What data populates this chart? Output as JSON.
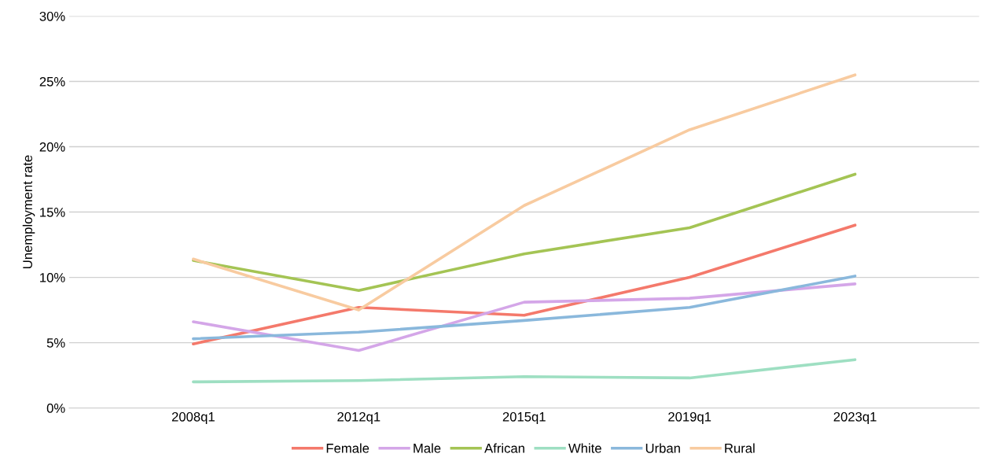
{
  "chart_data": {
    "type": "line",
    "ylabel": "Unemployment rate",
    "categories": [
      "2008q1",
      "2012q1",
      "2015q1",
      "2019q1",
      "2023q1"
    ],
    "series": [
      {
        "name": "Female",
        "color": "#f4796b",
        "values": [
          4.9,
          7.7,
          7.1,
          10.0,
          14.0
        ]
      },
      {
        "name": "Male",
        "color": "#d4a6e8",
        "values": [
          6.6,
          4.4,
          8.1,
          8.4,
          9.5
        ]
      },
      {
        "name": "African",
        "color": "#a4c454",
        "values": [
          11.3,
          9.0,
          11.8,
          13.8,
          17.9
        ]
      },
      {
        "name": "White",
        "color": "#9edfc2",
        "values": [
          2.0,
          2.1,
          2.4,
          2.3,
          3.7
        ]
      },
      {
        "name": "Urban",
        "color": "#8ab8dc",
        "values": [
          5.3,
          5.8,
          6.7,
          7.7,
          10.1
        ]
      },
      {
        "name": "Rural",
        "color": "#f8cba0",
        "values": [
          11.4,
          7.5,
          15.5,
          21.3,
          25.5
        ]
      }
    ],
    "ylim": [
      0,
      30
    ],
    "yticks": [
      {
        "value": 0,
        "label": "0%"
      },
      {
        "value": 5,
        "label": "5%"
      },
      {
        "value": 10,
        "label": "10%"
      },
      {
        "value": 15,
        "label": "15%"
      },
      {
        "value": 20,
        "label": "20%"
      },
      {
        "value": 25,
        "label": "25%"
      },
      {
        "value": 30,
        "label": "30%"
      }
    ],
    "grid": "y",
    "legend": "bottom",
    "marker": "none",
    "line_style": "solid"
  }
}
